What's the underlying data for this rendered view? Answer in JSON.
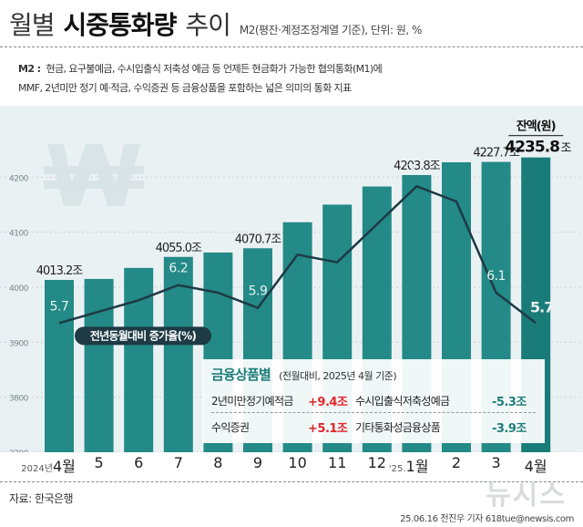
{
  "title": {
    "part1": "월별",
    "part2": "시중통화량",
    "part3": "추이",
    "subtitle": "M2(평잔·계정조정계열 기준), 단위: 원, %"
  },
  "definition": {
    "label": "M2 :",
    "line1": "현금, 요구불예금, 수시입출식 저축성 예금 등 언제든 현금화가 가능한 협의통화(M1)에",
    "line2": "MMF, 2년미만 정기 예·적금, 수익증권 등 금융상품을 포함하는 넓은 의미의 통화 지표"
  },
  "chart_data": {
    "type": "bar",
    "categories": [
      "4월",
      "5",
      "6",
      "7",
      "8",
      "9",
      "10",
      "11",
      "12",
      "1월",
      "2",
      "3",
      "4월"
    ],
    "year_prefixes": [
      "2024년",
      "",
      "",
      "",
      "",
      "",
      "",
      "",
      "",
      "'25.",
      "",
      "",
      ""
    ],
    "series": [
      {
        "name": "잔액",
        "type": "bar",
        "values": [
          4013.2,
          4015,
          4035,
          4055.0,
          4063,
          4070.7,
          4118,
          4150,
          4183,
          4203.8,
          4227,
          4227.7,
          4235.8
        ]
      },
      {
        "name": "전년동월대비 증가율(%)",
        "type": "line",
        "values": [
          5.7,
          5.85,
          6.0,
          6.2,
          6.1,
          5.9,
          6.6,
          6.5,
          7.0,
          7.5,
          7.3,
          6.1,
          5.7
        ]
      }
    ],
    "bar_labels": {
      "0": "4013.2조",
      "3": "4055.0조",
      "5": "4070.7조",
      "9": "4203.8조",
      "11": "4227.7조"
    },
    "line_labels": {
      "0": "5.7",
      "3": "6.2",
      "5": "5.9",
      "9": "7.5",
      "11": "6.1"
    },
    "last_bar_label": {
      "number": "4235.8",
      "unit": "조",
      "caption": "잔액(원)"
    },
    "last_line_label": "5.7%",
    "line_legend": "전년동월대비 증가율(%)",
    "y_ticks": [
      3700,
      3800,
      3900,
      4000,
      4100,
      4200
    ],
    "ylim": [
      3700,
      4280
    ],
    "line_ylim": [
      4.0,
      8.2
    ],
    "colors": {
      "bar": "#238a87",
      "bar_last": "#1a7c79",
      "line": "#1d3a45",
      "label": "#222222"
    }
  },
  "panel": {
    "title": "금융상품별",
    "subtitle": "(전월대비, 2025년 4월 기준)",
    "items": [
      {
        "name": "2년미만정기예적금",
        "value": "+9.4조"
      },
      {
        "name": "수시입출식저축성예금",
        "value": "-5.3조"
      },
      {
        "name": "수익증권",
        "value": "+5.1조"
      },
      {
        "name": "기타통화성금융상품",
        "value": "-3.9조"
      }
    ]
  },
  "footer": {
    "source": "자료: 한국은행",
    "credit": "25.06.16 전진우 기자 618tue@newsis.com",
    "watermark": "뉴시스"
  }
}
